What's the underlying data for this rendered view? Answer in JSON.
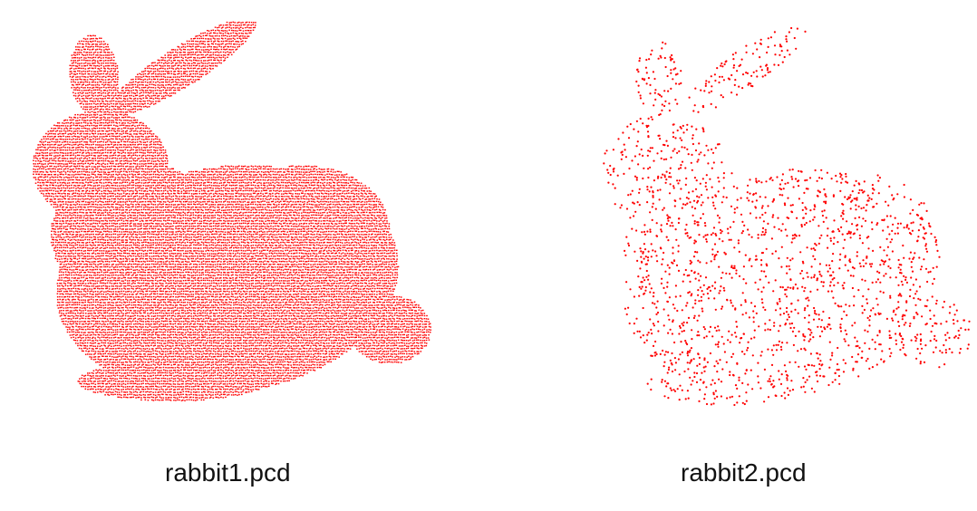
{
  "figure": {
    "point_color": "#ff0000",
    "background": "#ffffff",
    "panels": [
      {
        "caption": "rabbit1.pcd",
        "density": "dense"
      },
      {
        "caption": "rabbit2.pcd",
        "density": "sparse"
      }
    ]
  }
}
